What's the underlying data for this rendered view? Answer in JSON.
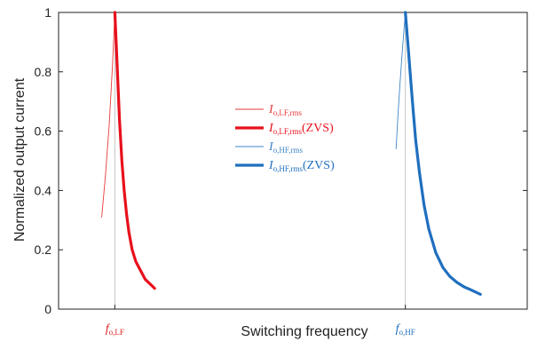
{
  "chart_data": {
    "type": "line",
    "xlabel": "Switching frequency",
    "ylabel": "Normalized output current",
    "ylim": [
      0,
      1
    ],
    "yticks": [
      0,
      0.2,
      0.4,
      0.6,
      0.8,
      1
    ],
    "ytick_labels": [
      "0",
      "0.2",
      "0.4",
      "0.6",
      "0.8",
      "1"
    ],
    "x_domain": [
      0,
      100
    ],
    "xticks": [
      {
        "x": 12,
        "main": "f",
        "sub": "o,LF",
        "color": "#e02020"
      },
      {
        "x": 74,
        "main": "f",
        "sub": "o,HF",
        "color": "#1f6fbf"
      }
    ],
    "grid": false,
    "legend_position": "center",
    "series": [
      {
        "name_main": "I",
        "name_sub": "o,LF,rms",
        "name_suffix": "",
        "color": "#e83a3a",
        "style": "thin",
        "x": [
          9.2,
          10.0,
          10.8,
          11.5,
          12.0
        ],
        "y": [
          0.31,
          0.45,
          0.62,
          0.82,
          1.0
        ]
      },
      {
        "name_main": "I",
        "name_sub": "o,LF,rms",
        "name_suffix": "(ZVS)",
        "color": "#e8101c",
        "style": "thick",
        "x": [
          12.0,
          12.5,
          13.0,
          13.5,
          14.0,
          14.5,
          15.0,
          15.7,
          16.5,
          17.5,
          18.5,
          19.5,
          20.5
        ],
        "y": [
          1.0,
          0.82,
          0.64,
          0.5,
          0.4,
          0.32,
          0.26,
          0.2,
          0.16,
          0.13,
          0.1,
          0.085,
          0.07
        ]
      },
      {
        "name_main": "I",
        "name_sub": "o,HF,rms",
        "name_suffix": "",
        "color": "#3f86c8",
        "style": "thin",
        "x": [
          72.0,
          72.6,
          73.2,
          73.7,
          74.0
        ],
        "y": [
          0.54,
          0.7,
          0.84,
          0.94,
          1.0
        ]
      },
      {
        "name_main": "I",
        "name_sub": "o,HF,rms",
        "name_suffix": "(ZVS)",
        "color": "#1f6fbf",
        "style": "thick",
        "x": [
          74.0,
          74.5,
          75.0,
          75.6,
          76.2,
          77.0,
          78.0,
          79.0,
          80.5,
          82.0,
          83.5,
          85.0,
          86.5,
          88.0,
          90.0
        ],
        "y": [
          1.0,
          0.9,
          0.8,
          0.68,
          0.57,
          0.46,
          0.35,
          0.27,
          0.19,
          0.14,
          0.11,
          0.09,
          0.075,
          0.065,
          0.05
        ]
      }
    ]
  }
}
